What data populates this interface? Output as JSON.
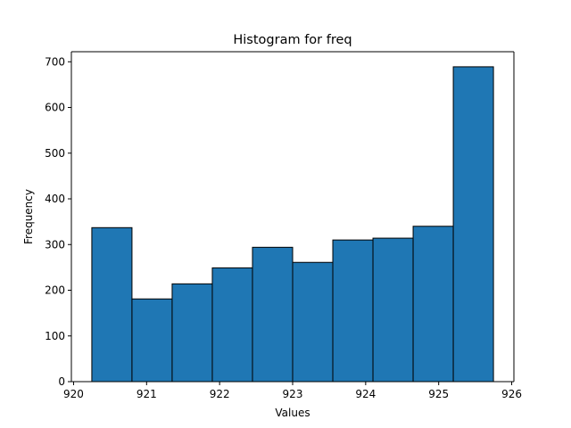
{
  "chart_data": {
    "type": "bar",
    "title": "Histogram for freq",
    "xlabel": "Values",
    "ylabel": "Frequency",
    "xlim": [
      919.97,
      926.03
    ],
    "ylim": [
      0,
      722
    ],
    "x_ticks": [
      920,
      921,
      922,
      923,
      924,
      925,
      926
    ],
    "y_ticks": [
      0,
      100,
      200,
      300,
      400,
      500,
      600,
      700
    ],
    "bin_edges": [
      920.25,
      920.8,
      921.35,
      921.9,
      922.45,
      923.0,
      923.55,
      924.1,
      924.65,
      925.2,
      925.75
    ],
    "values": [
      337,
      181,
      214,
      249,
      294,
      261,
      310,
      314,
      340,
      689
    ],
    "bar_color": "#1f77b4",
    "edge_color": "#000000",
    "grid": false,
    "legend": "none"
  }
}
